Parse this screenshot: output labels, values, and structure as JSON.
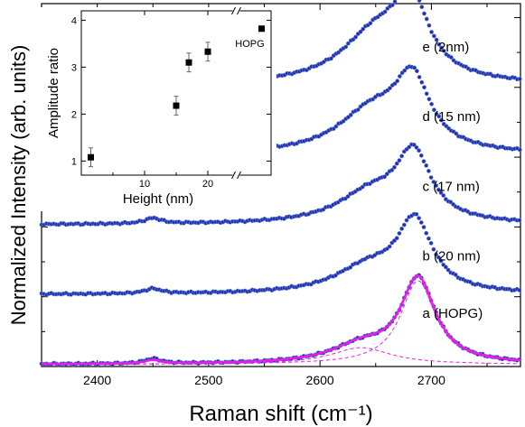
{
  "colors": {
    "marker_fill": "#2b2bb0",
    "marker_edge": "#5d8fd8",
    "fit_line": "#e61ee6",
    "axis": "#000000"
  },
  "chart_data": [
    {
      "type": "scatter",
      "xlabel": "Raman shift (cm⁻¹)",
      "ylabel": "Normalized Intensity (arb. units)",
      "xlim": [
        2350,
        2780
      ],
      "ylim": [
        0,
        5.2
      ],
      "x_ticks": [
        2400,
        2500,
        2600,
        2700
      ],
      "y_tick_labels_shown": false,
      "series": [
        {
          "name": "a (HOPG)",
          "label_text": "a (HOPG)",
          "offset": 0.0,
          "peaks": [
            {
              "center": 2450,
              "amp": 0.07,
              "width": 9
            },
            {
              "center": 2637,
              "amp": 0.24,
              "width": 33
            },
            {
              "center": 2688,
              "amp": 1.2,
              "width": 19
            }
          ],
          "fit_components": [
            {
              "center": 2637,
              "amp": 0.24,
              "width": 33
            },
            {
              "center": 2688,
              "amp": 1.2,
              "width": 19
            }
          ]
        },
        {
          "name": "b (20 nm)",
          "label_text": "b (20 nm)",
          "offset": 1.0,
          "peaks": [
            {
              "center": 2450,
              "amp": 0.07,
              "width": 9
            },
            {
              "center": 2643,
              "amp": 0.36,
              "width": 36
            },
            {
              "center": 2685,
              "amp": 1.0,
              "width": 19
            }
          ]
        },
        {
          "name": "c (17 nm)",
          "label_text": "c (17 nm)",
          "offset": 2.0,
          "peaks": [
            {
              "center": 2450,
              "amp": 0.08,
              "width": 9
            },
            {
              "center": 2645,
              "amp": 0.42,
              "width": 36
            },
            {
              "center": 2684,
              "amp": 0.95,
              "width": 19
            }
          ]
        },
        {
          "name": "d (15 nm)",
          "label_text": "d (15 nm)",
          "offset": 3.0,
          "peaks": [
            {
              "center": 2647,
              "amp": 0.6,
              "width": 38
            },
            {
              "center": 2683,
              "amp": 0.95,
              "width": 19
            }
          ]
        },
        {
          "name": "e (2nm)",
          "label_text": "e (2nm)",
          "offset": 4.0,
          "peaks": [
            {
              "center": 2650,
              "amp": 0.7,
              "width": 38
            },
            {
              "center": 2682,
              "amp": 1.0,
              "width": 19
            }
          ]
        }
      ]
    },
    {
      "type": "scatter",
      "name": "inset",
      "xlabel": "Height (nm)",
      "ylabel": "Amplitude ratio",
      "xlim": [
        0,
        30
      ],
      "ylim": [
        0.7,
        4.2
      ],
      "x_ticks": [
        10,
        20
      ],
      "y_ticks": [
        1,
        2,
        3,
        4
      ],
      "axis_break": "between 20 and HOPG",
      "points": [
        {
          "x": 1.5,
          "y": 1.08,
          "err": 0.2
        },
        {
          "x": 15,
          "y": 2.18,
          "err": 0.2
        },
        {
          "x": 17,
          "y": 3.1,
          "err": 0.2
        },
        {
          "x": 20,
          "y": 3.33,
          "err": 0.2
        },
        {
          "x": 28.5,
          "y": 3.82,
          "err": 0.0
        }
      ],
      "annotation": "HOPG"
    }
  ]
}
